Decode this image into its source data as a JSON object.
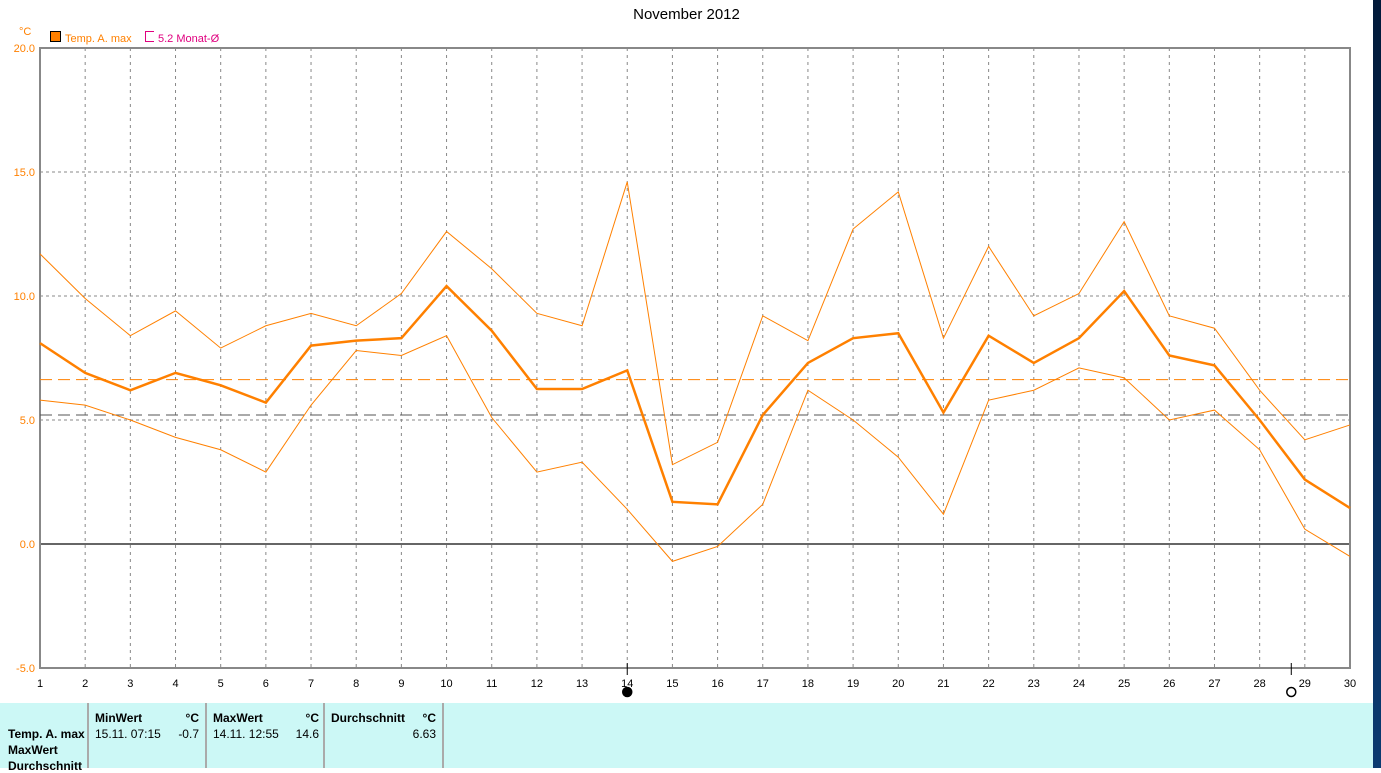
{
  "title": "November 2012",
  "legend": [
    {
      "label": "Temp. A. max",
      "color": "#ff8000"
    },
    {
      "label": "5.2 Monat-Ø",
      "color": "#e0007f"
    }
  ],
  "chart_data": {
    "type": "line",
    "title": "November 2012",
    "ylabel": "°C",
    "ylim": [
      -5,
      20
    ],
    "yticks": [
      "20.0",
      "15.0",
      "10.0",
      "5.0",
      "0.0",
      "-5.0"
    ],
    "x": [
      1,
      2,
      3,
      4,
      5,
      6,
      7,
      8,
      9,
      10,
      11,
      12,
      13,
      14,
      15,
      16,
      17,
      18,
      19,
      20,
      21,
      22,
      23,
      24,
      25,
      26,
      27,
      28,
      29,
      30
    ],
    "grid": true,
    "series": [
      {
        "role": "max",
        "values": [
          11.7,
          9.9,
          8.4,
          9.4,
          7.9,
          8.8,
          9.3,
          8.8,
          10.1,
          12.6,
          11.1,
          9.3,
          8.8,
          14.6,
          3.2,
          4.1,
          9.2,
          8.2,
          12.7,
          14.2,
          8.3,
          12.0,
          9.2,
          10.1,
          13.0,
          9.2,
          8.7,
          6.2,
          4.2,
          4.8
        ]
      },
      {
        "role": "mean",
        "values": [
          8.1,
          6.9,
          6.2,
          6.9,
          6.4,
          5.7,
          8.0,
          8.2,
          8.3,
          10.4,
          8.6,
          6.25,
          6.25,
          7.0,
          1.7,
          1.6,
          5.2,
          7.3,
          8.3,
          8.5,
          5.3,
          8.4,
          7.3,
          8.3,
          10.2,
          7.6,
          7.2,
          5.0,
          2.6,
          1.45
        ]
      },
      {
        "role": "min",
        "values": [
          5.8,
          5.6,
          5.0,
          4.3,
          3.8,
          2.9,
          5.6,
          7.8,
          7.6,
          8.4,
          5.1,
          2.9,
          3.3,
          1.4,
          -0.7,
          -0.1,
          1.6,
          6.2,
          5.0,
          3.5,
          1.2,
          5.8,
          6.2,
          7.1,
          6.7,
          5.0,
          5.4,
          3.8,
          0.6,
          -0.5
        ]
      }
    ],
    "reference_lines": [
      {
        "value": 6.63,
        "color": "#ff8000"
      },
      {
        "value": 5.2,
        "color": "#555555"
      }
    ],
    "markers": [
      {
        "x": 14,
        "type": "filled-circle"
      },
      {
        "x": 28.7,
        "type": "open-circle"
      }
    ]
  },
  "stats": {
    "row_labels": [
      "Temp. A. max",
      "MaxWert",
      "Durchschnitt"
    ],
    "min_header": "MinWert",
    "max_header": "MaxWert",
    "avg_header": "Durchschnitt",
    "unit": "°C",
    "min_time": "15.11.  07:15",
    "min_value": "-0.7",
    "max_time": "14.11.  12:55",
    "max_value": "14.6",
    "avg_value": "6.63"
  }
}
